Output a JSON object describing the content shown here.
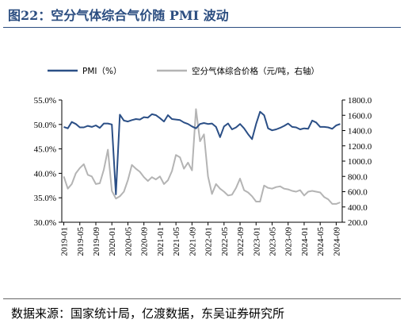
{
  "header": {
    "title": "图22：空分气体综合气价随 PMI 波动"
  },
  "footer": {
    "source": "数据来源：国家统计局，亿渡数据，东吴证券研究所"
  },
  "colors": {
    "pmi": "#2b4f86",
    "price": "#b4b4b4",
    "axis": "#000000",
    "title": "#2b4d80"
  },
  "chart_data": {
    "type": "line",
    "title": "",
    "legend_position": "top",
    "grid": false,
    "x_tick_labels": [
      "2019-01",
      "2019-05",
      "2019-09",
      "2020-01",
      "2020-05",
      "2020-09",
      "2021-01",
      "2021-05",
      "2021-09",
      "2022-01",
      "2022-05",
      "2022-09",
      "2023-01",
      "2023-05",
      "2023-09",
      "2024-01",
      "2024-05",
      "2024-09"
    ],
    "x_tick_step_months": 4,
    "x_start": "2019-01",
    "x_end": "2024-10",
    "y_left": {
      "min": 30,
      "max": 55,
      "ticks": [
        30,
        35,
        40,
        45,
        50,
        55
      ],
      "tick_labels": [
        "30.0%",
        "35.0%",
        "40.0%",
        "45.0%",
        "50.0%",
        "55.0%"
      ]
    },
    "y_right": {
      "min": 200,
      "max": 1800,
      "ticks": [
        200,
        400,
        600,
        800,
        1000,
        1200,
        1400,
        1600,
        1800
      ],
      "tick_labels": [
        "200.0",
        "400.0",
        "600.0",
        "800.0",
        "1000.0",
        "1200.0",
        "1400.0",
        "1600.0",
        "1800.0"
      ]
    },
    "series": [
      {
        "name": "PMI（%）",
        "axis": "left",
        "values": [
          49.5,
          49.2,
          50.5,
          50.1,
          49.4,
          49.4,
          49.7,
          49.5,
          49.8,
          49.3,
          50.2,
          50.2,
          50.0,
          35.7,
          52.0,
          50.8,
          50.6,
          50.9,
          51.1,
          51.0,
          51.5,
          51.4,
          52.1,
          51.9,
          51.3,
          50.6,
          51.9,
          51.1,
          51.0,
          50.9,
          50.4,
          50.1,
          49.6,
          49.2,
          50.1,
          50.3,
          50.1,
          50.2,
          49.5,
          47.4,
          49.6,
          50.2,
          49.0,
          49.4,
          50.1,
          49.2,
          48.0,
          47.0,
          50.1,
          52.6,
          51.9,
          49.2,
          48.8,
          49.0,
          49.3,
          49.7,
          50.2,
          49.5,
          49.4,
          49.0,
          49.2,
          49.1,
          50.8,
          50.4,
          49.5,
          49.5,
          49.4,
          49.1,
          49.8,
          50.1
        ]
      },
      {
        "name": "空分气体综合价格（元/吨，右轴）",
        "axis": "right",
        "values": [
          800,
          640,
          700,
          840,
          910,
          960,
          820,
          800,
          700,
          710,
          890,
          1150,
          610,
          510,
          540,
          600,
          750,
          950,
          900,
          860,
          790,
          740,
          790,
          760,
          800,
          700,
          750,
          870,
          1080,
          1050,
          900,
          980,
          880,
          1680,
          1260,
          1350,
          800,
          570,
          700,
          640,
          600,
          550,
          560,
          650,
          770,
          620,
          590,
          540,
          470,
          470,
          680,
          650,
          640,
          660,
          670,
          640,
          630,
          610,
          600,
          620,
          550,
          600,
          610,
          600,
          590,
          530,
          500,
          440,
          440,
          460
        ]
      }
    ]
  }
}
